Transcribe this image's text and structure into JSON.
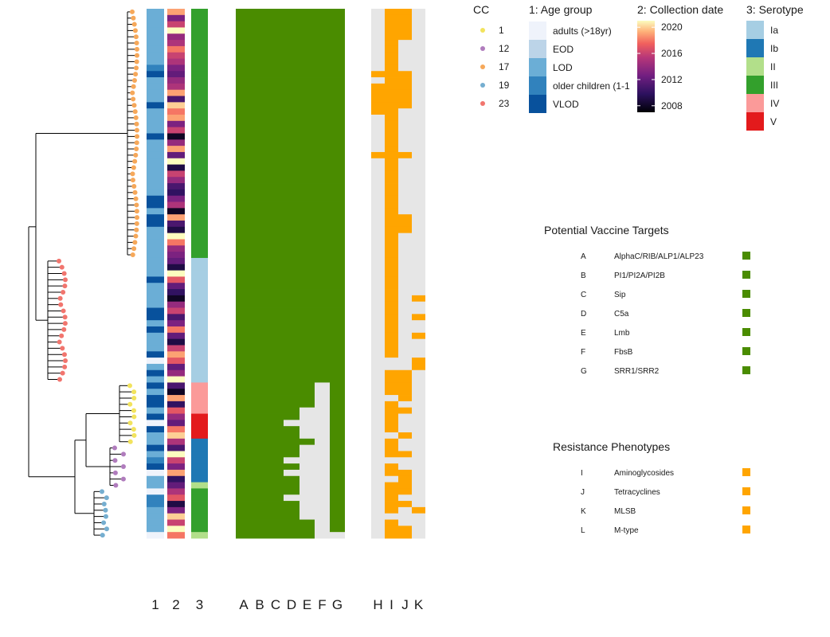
{
  "chart_data": {
    "type": "heatmap",
    "tree": {
      "tip_count": 85,
      "groups": [
        {
          "cc": "17",
          "tips": 40
        },
        {
          "cc": "23",
          "tips": 20
        },
        {
          "cc": "1",
          "tips": 10
        },
        {
          "cc": "12",
          "tips": 7
        },
        {
          "cc": "19",
          "tips": 8
        }
      ]
    },
    "column_labels": [
      "1",
      "2",
      "3",
      "A",
      "B",
      "C",
      "D",
      "E",
      "F",
      "G",
      "H",
      "I",
      "J",
      "K"
    ],
    "legends": {
      "cc": {
        "title": "CC",
        "entries": [
          {
            "label": "1",
            "color": "#f2e35d"
          },
          {
            "label": "12",
            "color": "#b07cbd"
          },
          {
            "label": "17",
            "color": "#f6a85a"
          },
          {
            "label": "19",
            "color": "#75aed0"
          },
          {
            "label": "23",
            "color": "#f1756e"
          }
        ]
      },
      "age": {
        "title": "1: Age group",
        "entries": [
          {
            "label": "adults (>18yr)",
            "color": "#eff3fb"
          },
          {
            "label": "EOD",
            "color": "#bcd4e8"
          },
          {
            "label": "LOD",
            "color": "#6baed6"
          },
          {
            "label": "older children (1-1",
            "color": "#3182bd"
          },
          {
            "label": "VLOD",
            "color": "#08519c"
          }
        ]
      },
      "date": {
        "title": "2: Collection date",
        "ticks": [
          "2020",
          "2016",
          "2012",
          "2008"
        ],
        "range": [
          2007,
          2021
        ]
      },
      "serotype": {
        "title": "3: Serotype",
        "entries": [
          {
            "label": "Ia",
            "color": "#a6cee3"
          },
          {
            "label": "Ib",
            "color": "#1f78b4"
          },
          {
            "label": "II",
            "color": "#b2df8a"
          },
          {
            "label": "III",
            "color": "#33a02c"
          },
          {
            "label": "IV",
            "color": "#fb9a99"
          },
          {
            "label": "V",
            "color": "#e31a1c"
          }
        ]
      }
    },
    "vaccine_targets": {
      "title": "Potential Vaccine Targets",
      "color": "#4a8c00",
      "items": [
        {
          "letter": "A",
          "name": "AlphaC/RIB/ALP1/ALP23"
        },
        {
          "letter": "B",
          "name": "PI1/PI2A/PI2B"
        },
        {
          "letter": "C",
          "name": "Sip"
        },
        {
          "letter": "D",
          "name": "C5a"
        },
        {
          "letter": "E",
          "name": "Lmb"
        },
        {
          "letter": "F",
          "name": "FbsB"
        },
        {
          "letter": "G",
          "name": "SRR1/SRR2"
        }
      ]
    },
    "resistance": {
      "title": "Resistance Phenotypes",
      "color": "#ffa500",
      "items": [
        {
          "letter": "I",
          "name": "Aminoglycosides"
        },
        {
          "letter": "J",
          "name": "Tetracyclines"
        },
        {
          "letter": "K",
          "name": "MLSB"
        },
        {
          "letter": "L",
          "name": "M-type"
        }
      ]
    },
    "absent_color": "#e6e6e6",
    "rows": {
      "age": [
        "LOD",
        "LOD",
        "LOD",
        "LOD",
        "LOD",
        "LOD",
        "LOD",
        "LOD",
        "LOD",
        "older children (1-1",
        "VLOD",
        "LOD",
        "LOD",
        "LOD",
        "LOD",
        "VLOD",
        "LOD",
        "LOD",
        "LOD",
        "LOD",
        "VLOD",
        "LOD",
        "LOD",
        "LOD",
        "LOD",
        "LOD",
        "LOD",
        "LOD",
        "LOD",
        "LOD",
        "VLOD",
        "VLOD",
        "LOD",
        "VLOD",
        "VLOD",
        "LOD",
        "LOD",
        "LOD",
        "LOD",
        "LOD",
        "LOD",
        "LOD",
        "LOD",
        "VLOD",
        "LOD",
        "LOD",
        "LOD",
        "LOD",
        "VLOD",
        "VLOD",
        "LOD",
        "VLOD",
        "LOD",
        "LOD",
        "LOD",
        "VLOD",
        "adults (>18yr)",
        "LOD",
        "VLOD",
        "LOD",
        "VLOD",
        "LOD",
        "VLOD",
        "VLOD",
        "LOD",
        "VLOD",
        "adults (>18yr)",
        "VLOD",
        "LOD",
        "LOD",
        "VLOD",
        "LOD",
        "older children (1-1",
        "VLOD",
        "adults (>18yr)",
        "LOD",
        "LOD",
        "adults (>18yr)",
        "older children (1-1",
        "older children (1-1",
        "LOD",
        "LOD",
        "LOD",
        "LOD",
        "adults (>18yr)"
      ],
      "year": [
        2019,
        2013,
        2016,
        2021,
        2014,
        2015,
        2018,
        2016,
        2015,
        2013,
        2012,
        2014,
        2015,
        2019,
        2011,
        2020,
        2018,
        2019,
        2013,
        2016,
        2008,
        2014,
        2019,
        2012,
        2021,
        2009,
        2016,
        2014,
        2011,
        2010,
        2013,
        2015,
        2008,
        2019,
        2011,
        2009,
        2021,
        2018,
        2014,
        2013,
        2012,
        2009,
        2021,
        2017,
        2012,
        2010,
        2008,
        2014,
        2016,
        2011,
        2013,
        2018,
        2012,
        2009,
        2016,
        2019,
        2017,
        2012,
        2014,
        2021,
        2011,
        2008,
        2019,
        2010,
        2017,
        2014,
        2012,
        2018,
        2020,
        2015,
        2011,
        2021,
        2016,
        2013,
        2019,
        2010,
        2012,
        2015,
        2017,
        2009,
        2013,
        2020,
        2016,
        2021,
        2018
      ],
      "serotype": [
        "III",
        "III",
        "III",
        "III",
        "III",
        "III",
        "III",
        "III",
        "III",
        "III",
        "III",
        "III",
        "III",
        "III",
        "III",
        "III",
        "III",
        "III",
        "III",
        "III",
        "III",
        "III",
        "III",
        "III",
        "III",
        "III",
        "III",
        "III",
        "III",
        "III",
        "III",
        "III",
        "III",
        "III",
        "III",
        "III",
        "III",
        "III",
        "III",
        "III",
        "Ia",
        "Ia",
        "Ia",
        "Ia",
        "Ia",
        "Ia",
        "Ia",
        "Ia",
        "Ia",
        "Ia",
        "Ia",
        "Ia",
        "Ia",
        "Ia",
        "Ia",
        "Ia",
        "Ia",
        "Ia",
        "Ia",
        "Ia",
        "IV",
        "IV",
        "IV",
        "IV",
        "IV",
        "V",
        "V",
        "V",
        "V",
        "Ib",
        "Ib",
        "Ib",
        "Ib",
        "Ib",
        "Ib",
        "Ib",
        "II",
        "III",
        "III",
        "III",
        "III",
        "III",
        "III",
        "III",
        "II"
      ],
      "vaccine": [
        [
          1,
          1,
          1,
          1,
          1,
          1,
          1,
          1,
          1,
          1,
          1,
          1,
          1,
          1,
          1,
          1,
          1,
          1,
          1,
          1,
          1,
          1,
          1,
          1,
          1,
          1,
          1,
          1,
          1,
          1,
          1,
          1,
          1,
          1,
          1,
          1,
          1,
          1,
          1,
          1,
          1,
          1,
          1,
          1,
          1,
          1,
          1,
          1,
          1,
          1,
          1,
          1,
          1,
          1,
          1,
          1,
          1,
          1,
          1,
          1,
          1,
          1,
          1,
          1,
          1,
          1,
          1,
          1,
          1,
          1,
          1,
          1,
          1,
          1,
          1,
          1,
          1,
          1,
          1,
          1,
          1,
          1,
          1,
          1,
          1
        ],
        [
          1,
          1,
          1,
          1,
          1,
          1,
          1,
          1,
          1,
          1,
          1,
          1,
          1,
          1,
          1,
          1,
          1,
          1,
          1,
          1,
          1,
          1,
          1,
          1,
          1,
          1,
          1,
          1,
          1,
          1,
          1,
          1,
          1,
          1,
          1,
          1,
          1,
          1,
          1,
          1,
          1,
          1,
          1,
          1,
          1,
          1,
          1,
          1,
          1,
          1,
          1,
          1,
          1,
          1,
          1,
          1,
          1,
          1,
          1,
          1,
          1,
          1,
          1,
          1,
          1,
          1,
          1,
          1,
          1,
          1,
          1,
          1,
          1,
          1,
          1,
          1,
          1,
          1,
          1,
          1,
          1,
          1,
          1,
          1,
          1
        ],
        [
          1,
          1,
          1,
          1,
          1,
          1,
          1,
          1,
          1,
          1,
          1,
          1,
          1,
          1,
          1,
          1,
          1,
          1,
          1,
          1,
          1,
          1,
          1,
          1,
          1,
          1,
          1,
          1,
          1,
          1,
          1,
          1,
          1,
          1,
          1,
          1,
          1,
          1,
          1,
          1,
          1,
          1,
          1,
          1,
          1,
          1,
          1,
          1,
          1,
          1,
          1,
          1,
          1,
          1,
          1,
          1,
          1,
          1,
          1,
          1,
          1,
          1,
          1,
          1,
          1,
          1,
          1,
          1,
          1,
          1,
          1,
          1,
          1,
          1,
          1,
          1,
          1,
          1,
          1,
          1,
          1,
          1,
          1,
          1,
          1
        ],
        [
          1,
          1,
          1,
          1,
          1,
          1,
          1,
          1,
          1,
          1,
          1,
          1,
          1,
          1,
          1,
          1,
          1,
          1,
          1,
          1,
          1,
          1,
          1,
          1,
          1,
          1,
          1,
          1,
          1,
          1,
          1,
          1,
          1,
          1,
          1,
          1,
          1,
          1,
          1,
          1,
          1,
          1,
          1,
          1,
          1,
          1,
          1,
          1,
          1,
          1,
          1,
          1,
          1,
          1,
          1,
          1,
          1,
          1,
          1,
          1,
          1,
          1,
          1,
          1,
          1,
          1,
          0,
          1,
          1,
          1,
          1,
          1,
          0,
          1,
          0,
          1,
          1,
          1,
          0,
          1,
          1,
          1,
          1,
          1,
          1
        ],
        [
          1,
          1,
          1,
          1,
          1,
          1,
          1,
          1,
          1,
          1,
          1,
          1,
          1,
          1,
          1,
          1,
          1,
          1,
          1,
          1,
          1,
          1,
          1,
          1,
          1,
          1,
          1,
          1,
          1,
          1,
          1,
          1,
          1,
          1,
          1,
          1,
          1,
          1,
          1,
          1,
          1,
          1,
          1,
          1,
          1,
          1,
          1,
          1,
          1,
          1,
          1,
          1,
          1,
          1,
          1,
          1,
          1,
          1,
          1,
          1,
          1,
          1,
          1,
          1,
          0,
          0,
          0,
          0,
          0,
          1,
          0,
          0,
          0,
          0,
          0,
          0,
          0,
          0,
          0,
          0,
          0,
          0,
          1,
          1,
          1
        ],
        [
          1,
          1,
          1,
          1,
          1,
          1,
          1,
          1,
          1,
          1,
          1,
          1,
          1,
          1,
          1,
          1,
          1,
          1,
          1,
          1,
          1,
          1,
          1,
          1,
          1,
          1,
          1,
          1,
          1,
          1,
          1,
          1,
          1,
          1,
          1,
          1,
          1,
          1,
          1,
          1,
          1,
          1,
          1,
          1,
          1,
          1,
          1,
          1,
          1,
          1,
          1,
          1,
          1,
          1,
          1,
          1,
          1,
          1,
          1,
          1,
          0,
          0,
          0,
          0,
          0,
          0,
          0,
          0,
          0,
          0,
          0,
          0,
          0,
          0,
          0,
          0,
          0,
          0,
          0,
          0,
          0,
          0,
          0,
          0,
          0
        ],
        [
          1,
          1,
          1,
          1,
          1,
          1,
          1,
          1,
          1,
          1,
          1,
          1,
          1,
          1,
          1,
          1,
          1,
          1,
          1,
          1,
          1,
          1,
          1,
          1,
          1,
          1,
          1,
          1,
          1,
          1,
          1,
          1,
          1,
          1,
          1,
          1,
          1,
          1,
          1,
          1,
          1,
          1,
          1,
          1,
          1,
          1,
          1,
          1,
          1,
          1,
          1,
          1,
          1,
          1,
          1,
          1,
          1,
          1,
          1,
          1,
          1,
          1,
          1,
          1,
          1,
          1,
          1,
          1,
          1,
          1,
          1,
          1,
          1,
          1,
          1,
          1,
          1,
          1,
          1,
          1,
          1,
          1,
          1,
          1,
          0
        ]
      ],
      "resistance": [
        [
          0,
          0,
          0,
          0,
          0,
          0,
          0,
          0,
          0,
          0,
          1,
          0,
          1,
          1,
          1,
          1,
          1,
          0,
          0,
          0,
          0,
          0,
          0,
          1,
          0,
          0,
          0,
          0,
          0,
          0,
          0,
          0,
          0,
          0,
          0,
          0,
          0,
          0,
          0,
          0,
          0,
          0,
          0,
          0,
          0,
          0,
          0,
          0,
          0,
          0,
          0,
          0,
          0,
          0,
          0,
          0,
          0,
          0,
          0,
          0,
          0,
          0,
          0,
          0,
          0,
          0,
          0,
          0,
          0,
          0,
          0,
          0,
          0,
          0,
          0,
          0,
          0,
          0,
          0,
          0,
          0,
          0,
          0,
          0,
          0
        ],
        [
          1,
          1,
          1,
          1,
          1,
          1,
          1,
          1,
          1,
          1,
          1,
          1,
          1,
          1,
          1,
          1,
          1,
          1,
          1,
          1,
          1,
          1,
          1,
          1,
          1,
          1,
          1,
          1,
          1,
          1,
          1,
          1,
          1,
          1,
          1,
          1,
          1,
          1,
          1,
          1,
          1,
          1,
          1,
          1,
          1,
          1,
          1,
          1,
          1,
          1,
          1,
          1,
          1,
          1,
          1,
          1,
          0,
          0,
          1,
          1,
          1,
          1,
          0,
          1,
          1,
          1,
          1,
          1,
          0,
          1,
          1,
          1,
          0,
          1,
          1,
          0,
          1,
          1,
          1,
          1,
          1,
          0,
          1,
          1,
          1
        ],
        [
          1,
          1,
          1,
          1,
          1,
          0,
          0,
          0,
          0,
          0,
          1,
          1,
          1,
          1,
          1,
          1,
          0,
          0,
          0,
          0,
          0,
          0,
          0,
          1,
          0,
          0,
          0,
          0,
          0,
          0,
          0,
          0,
          0,
          1,
          1,
          1,
          0,
          0,
          0,
          0,
          0,
          0,
          0,
          0,
          0,
          0,
          0,
          0,
          0,
          0,
          0,
          0,
          0,
          0,
          0,
          0,
          0,
          0,
          1,
          1,
          1,
          1,
          1,
          0,
          1,
          0,
          0,
          0,
          1,
          0,
          0,
          1,
          0,
          0,
          1,
          1,
          1,
          1,
          0,
          1,
          0,
          0,
          0,
          1,
          1
        ],
        [
          0,
          0,
          0,
          0,
          0,
          0,
          0,
          0,
          0,
          0,
          0,
          0,
          0,
          0,
          0,
          0,
          0,
          0,
          0,
          0,
          0,
          0,
          0,
          0,
          0,
          0,
          0,
          0,
          0,
          0,
          0,
          0,
          0,
          0,
          0,
          0,
          0,
          0,
          0,
          0,
          0,
          0,
          0,
          0,
          0,
          0,
          1,
          0,
          0,
          1,
          0,
          0,
          1,
          0,
          0,
          0,
          1,
          1,
          0,
          0,
          0,
          0,
          0,
          0,
          0,
          0,
          0,
          0,
          0,
          0,
          0,
          0,
          0,
          0,
          0,
          0,
          0,
          0,
          0,
          0,
          1,
          0,
          0,
          0,
          0
        ]
      ]
    }
  }
}
